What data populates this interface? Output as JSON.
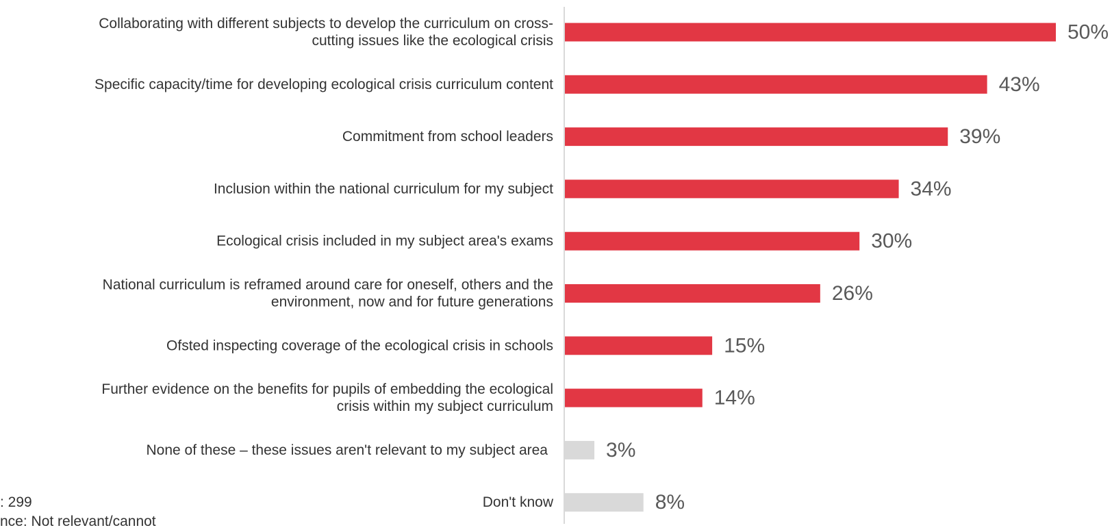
{
  "chart_data": {
    "type": "bar",
    "orientation": "horizontal",
    "title": "",
    "xlabel": "",
    "ylabel": "",
    "xlim": [
      0,
      50
    ],
    "grid": false,
    "legend": "none",
    "categories": [
      [
        "Collaborating with different subjects to develop the curriculum on cross-",
        "cutting issues like the ecological crisis"
      ],
      [
        "Specific capacity/time for developing ecological crisis curriculum content"
      ],
      [
        "Commitment from school leaders"
      ],
      [
        "Inclusion within the national curriculum for my subject"
      ],
      [
        "Ecological crisis included in my subject area's exams"
      ],
      [
        "National curriculum is reframed around care for oneself, others and the",
        "environment, now and for future generations"
      ],
      [
        "Ofsted inspecting coverage of the ecological crisis in schools"
      ],
      [
        "Further evidence on the benefits for pupils of embedding the ecological",
        "crisis within my subject curriculum"
      ],
      [
        "None of these – these issues aren't relevant to my subject area"
      ],
      [
        "Don't know"
      ]
    ],
    "values": [
      50,
      43,
      39,
      34,
      30,
      26,
      15,
      14,
      3,
      8
    ],
    "value_labels": [
      "50%",
      "43%",
      "39%",
      "34%",
      "30%",
      "26%",
      "15%",
      "14%",
      "3%",
      "8%"
    ],
    "bar_color_types": [
      "main",
      "main",
      "main",
      "main",
      "main",
      "main",
      "main",
      "main",
      "other",
      "other"
    ],
    "colors": {
      "main": "#e23744",
      "other": "#d9d9d9",
      "axis": "#d9d9d9"
    }
  },
  "notes": {
    "line1": ": 299",
    "line2": "nce: Not relevant/cannot"
  }
}
